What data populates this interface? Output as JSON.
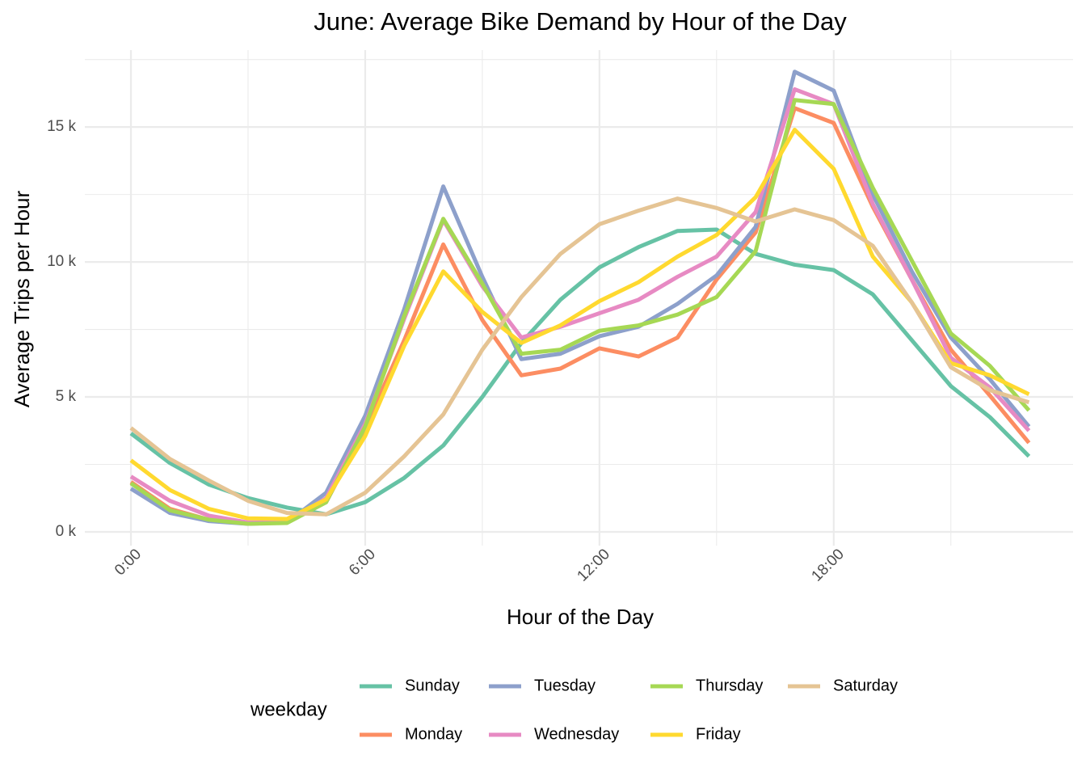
{
  "chart_data": {
    "type": "line",
    "title": "June: Average Bike Demand by Hour of the Day",
    "x_label": "Hour of the Day",
    "y_label": "Average Trips per Hour",
    "legend_title": "weekday",
    "legend_position": "bottom",
    "grid": true,
    "x": [
      0,
      1,
      2,
      3,
      4,
      5,
      6,
      7,
      8,
      9,
      10,
      11,
      12,
      13,
      14,
      15,
      16,
      17,
      18,
      19,
      20,
      21,
      22,
      23
    ],
    "xlim": [
      -1.18,
      24.13
    ],
    "xticks": [
      {
        "value": 0,
        "label": "0:00"
      },
      {
        "value": 6,
        "label": "6:00"
      },
      {
        "value": 12,
        "label": "12:00"
      },
      {
        "value": 18,
        "label": "18:00"
      }
    ],
    "x_minor_grid": [
      3,
      9,
      15,
      21
    ],
    "ylim": [
      -510,
      17850
    ],
    "yticks": [
      {
        "value": 0,
        "label": "0 k"
      },
      {
        "value": 5000,
        "label": "5 k"
      },
      {
        "value": 10000,
        "label": "10 k"
      },
      {
        "value": 15000,
        "label": "15 k"
      }
    ],
    "y_minor_grid": [
      2500,
      7500,
      12500,
      17500
    ],
    "series": [
      {
        "name": "Sunday",
        "color": "#66c2a5",
        "values": [
          3650,
          2550,
          1750,
          1250,
          900,
          650,
          1100,
          2000,
          3200,
          5000,
          7000,
          8600,
          9800,
          10550,
          11150,
          11200,
          10300,
          9900,
          9700,
          8800,
          7100,
          5400,
          4250,
          2800
        ]
      },
      {
        "name": "Monday",
        "color": "#fc8d62",
        "values": [
          1850,
          850,
          450,
          330,
          350,
          1100,
          3850,
          7100,
          10650,
          7850,
          5800,
          6050,
          6800,
          6500,
          7200,
          9350,
          11100,
          15700,
          15150,
          12050,
          9350,
          6750,
          5050,
          3300
        ]
      },
      {
        "name": "Tuesday",
        "color": "#8da0cb",
        "values": [
          1600,
          700,
          400,
          300,
          350,
          1450,
          4300,
          8250,
          12800,
          9450,
          6400,
          6600,
          7250,
          7600,
          8450,
          9500,
          11300,
          17050,
          16350,
          12500,
          9650,
          7200,
          5650,
          3900
        ]
      },
      {
        "name": "Wednesday",
        "color": "#e78ac3",
        "values": [
          2050,
          1150,
          600,
          350,
          350,
          1250,
          4000,
          7900,
          11550,
          9100,
          7200,
          7600,
          8100,
          8600,
          9450,
          10200,
          11850,
          16400,
          15850,
          12150,
          9350,
          6450,
          5350,
          3750
        ]
      },
      {
        "name": "Thursday",
        "color": "#a6d854",
        "values": [
          1800,
          800,
          450,
          300,
          330,
          1100,
          3900,
          8000,
          11600,
          9200,
          6600,
          6750,
          7450,
          7650,
          8050,
          8700,
          10400,
          16000,
          15850,
          12750,
          10050,
          7350,
          6150,
          4500
        ]
      },
      {
        "name": "Friday",
        "color": "#ffd92f",
        "values": [
          2650,
          1550,
          850,
          500,
          480,
          1200,
          3550,
          6900,
          9650,
          8150,
          7000,
          7650,
          8550,
          9250,
          10200,
          11000,
          12400,
          14900,
          13450,
          10200,
          8500,
          6250,
          5800,
          5100
        ]
      },
      {
        "name": "Saturday",
        "color": "#e5c494",
        "values": [
          3850,
          2700,
          1900,
          1150,
          700,
          650,
          1450,
          2800,
          4350,
          6750,
          8700,
          10300,
          11400,
          11900,
          12350,
          12000,
          11500,
          11950,
          11550,
          10600,
          8500,
          6100,
          5250,
          4800
        ]
      }
    ]
  }
}
